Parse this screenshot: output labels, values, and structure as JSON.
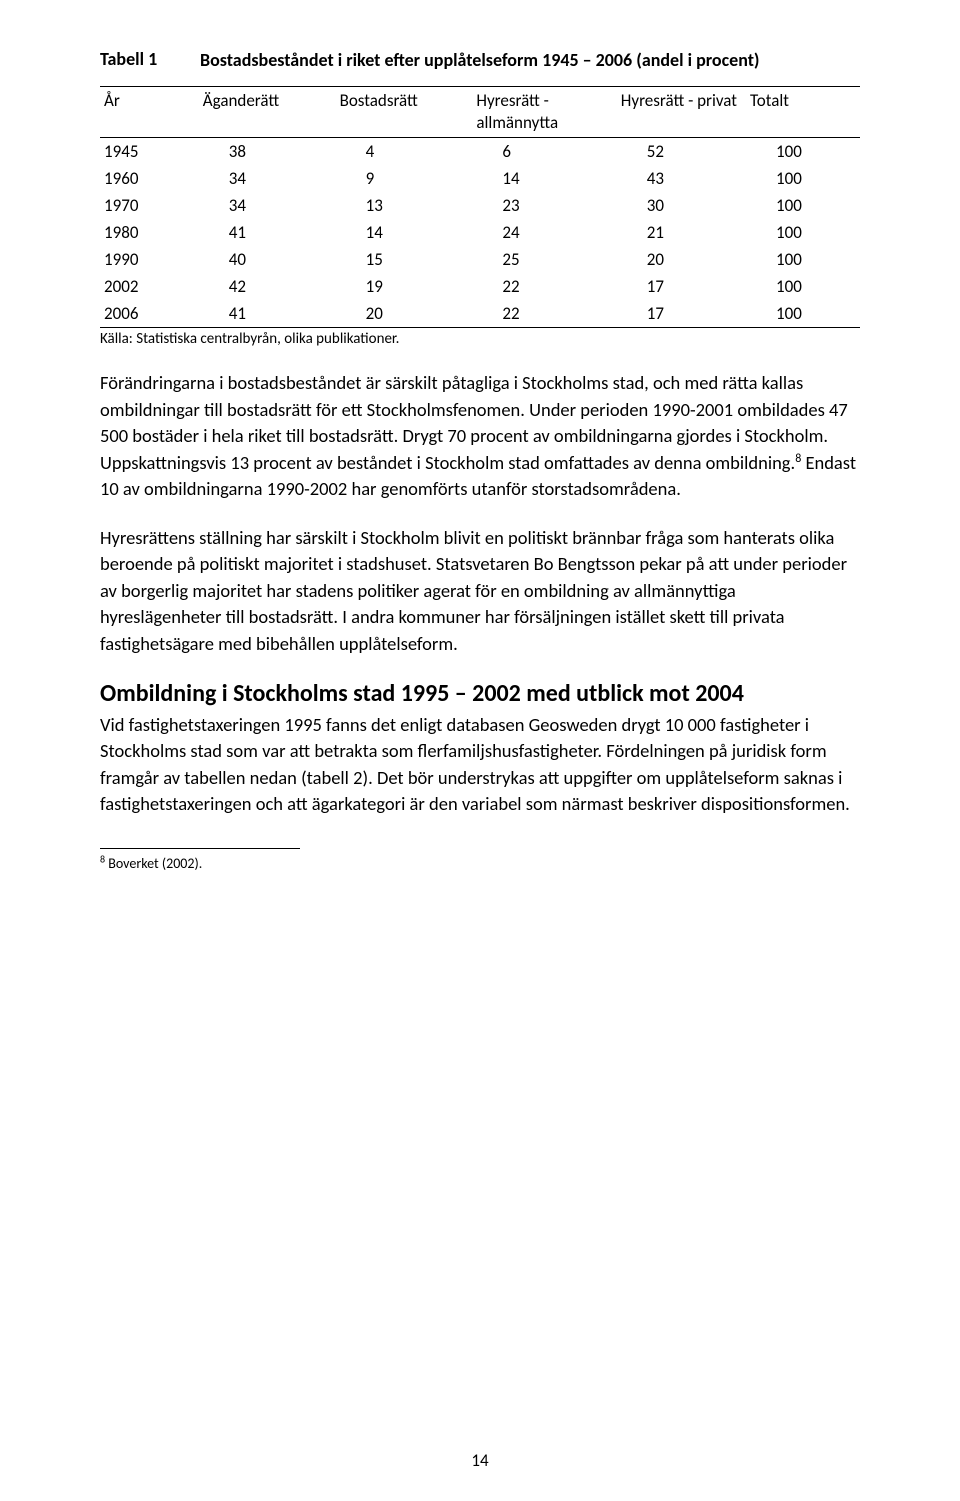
{
  "table1": {
    "label": "Tabell 1",
    "title": "Bostadsbeståndet i riket efter upplåtelseform 1945 – 2006 (andel i procent)",
    "columns": [
      "År",
      "Äganderätt",
      "Bostadsrätt",
      "Hyresrätt - allmännytta",
      "Hyresrätt - privat",
      "Totalt"
    ],
    "rows": [
      [
        "1945",
        "38",
        "4",
        "6",
        "52",
        "100"
      ],
      [
        "1960",
        "34",
        "9",
        "14",
        "43",
        "100"
      ],
      [
        "1970",
        "34",
        "13",
        "23",
        "30",
        "100"
      ],
      [
        "1980",
        "41",
        "14",
        "24",
        "21",
        "100"
      ],
      [
        "1990",
        "40",
        "15",
        "25",
        "20",
        "100"
      ],
      [
        "2002",
        "42",
        "19",
        "22",
        "17",
        "100"
      ],
      [
        "2006",
        "41",
        "20",
        "22",
        "17",
        "100"
      ]
    ],
    "source": "Källa: Statistiska centralbyrån, olika publikationer."
  },
  "paragraphs": {
    "p1_a": "Förändringarna i bostadsbeståndet är särskilt påtagliga i Stockholms stad, och med rätta kallas ombildningar till bostadsrätt för ett Stockholmsfenomen. Under perioden 1990-2001 ombildades 47 500 bostäder i hela riket till bostadsrätt. Drygt 70 procent av ombildningarna gjordes i Stockholm. Uppskattningsvis 13 procent av beståndet i Stockholm stad omfattades av denna ombildning.",
    "p1_sup": "8",
    "p1_b": " Endast 10 av ombildningarna 1990-2002 har genomförts utanför storstadsområdena.",
    "p2": "Hyresrättens ställning har särskilt i Stockholm blivit en politiskt brännbar fråga som hanterats olika beroende på politiskt majoritet i stadshuset. Statsvetaren Bo Bengtsson pekar på att under perioder av borgerlig majoritet har stadens politiker agerat för en ombildning av allmännyttiga hyreslägenheter till bostadsrätt. I andra kommuner har försäljningen istället skett till privata fastighetsägare med bibehållen upplåtelseform."
  },
  "section": {
    "heading": "Ombildning i Stockholms stad 1995 – 2002 med utblick mot 2004",
    "text": "Vid fastighetstaxeringen 1995 fanns det enligt databasen Geosweden drygt 10 000 fastigheter i Stockholms stad som var att betrakta som flerfamiljshusfastigheter. Fördelningen på juridisk form framgår av tabellen nedan (tabell 2). Det bör understrykas att uppgifter om upplåtelseform saknas i fastighetstaxeringen och att ägarkategori är den variabel som närmast beskriver dispositionsformen."
  },
  "footnote": {
    "num": "8",
    "text": " Boverket (2002)."
  },
  "page_number": "14"
}
